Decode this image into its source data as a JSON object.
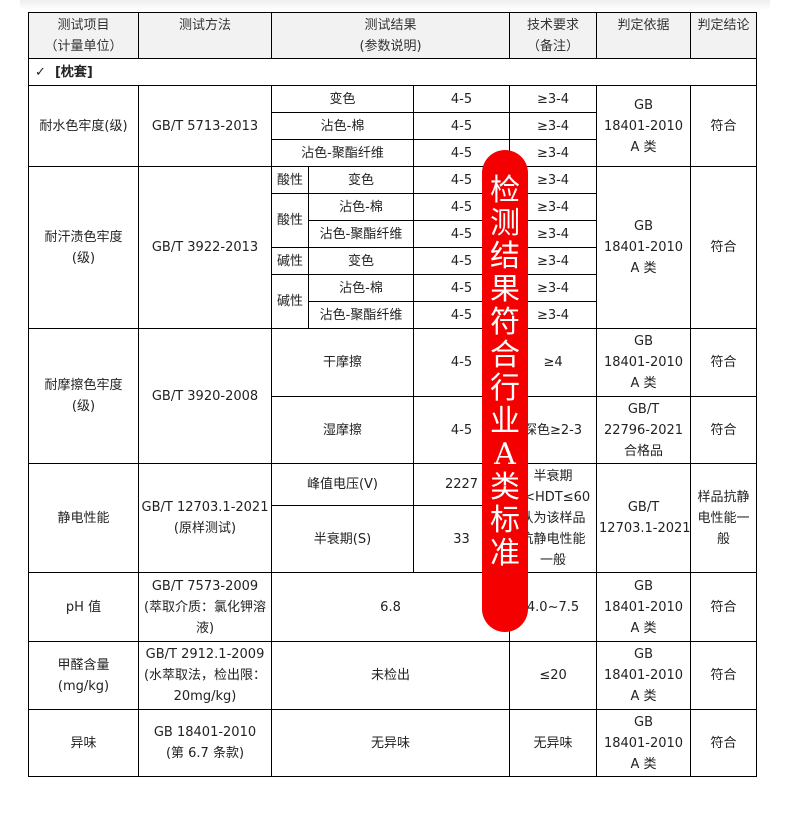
{
  "header": {
    "item": [
      "测试项目",
      "（计量单位）"
    ],
    "method": "测试方法",
    "result": [
      "测试结果",
      "(参数说明)"
    ],
    "req": [
      "技术要求",
      "（备注）"
    ],
    "basis": "判定依据",
    "conclusion": "判定结论"
  },
  "section": {
    "check": "✓",
    "label": "[枕套]"
  },
  "water": {
    "item": "耐水色牢度(级)",
    "method": "GB/T 5713-2013",
    "rows": [
      {
        "param": "变色",
        "value": "4-5",
        "req": "≥3-4"
      },
      {
        "param": "沾色-棉",
        "value": "4-5",
        "req": "≥3-4"
      },
      {
        "param": "沾色-聚酯纤维",
        "value": "4-5",
        "req": "≥3-4"
      }
    ],
    "basis": [
      "GB",
      "18401-2010",
      "A 类"
    ],
    "conclusion": "符合"
  },
  "sweat": {
    "item": [
      "耐汗渍色牢度",
      "(级)"
    ],
    "method": "GB/T 3922-2013",
    "acid": "酸性",
    "alkali": "碱性",
    "rows": [
      {
        "param": "变色",
        "value": "4-5",
        "req": "≥3-4"
      },
      {
        "param": "沾色-棉",
        "value": "4-5",
        "req": "≥3-4"
      },
      {
        "param": "沾色-聚酯纤维",
        "value": "4-5",
        "req": "≥3-4"
      },
      {
        "param": "变色",
        "value": "4-5",
        "req": "≥3-4"
      },
      {
        "param": "沾色-棉",
        "value": "4-5",
        "req": "≥3-4"
      },
      {
        "param": "沾色-聚酯纤维",
        "value": "4-5",
        "req": "≥3-4"
      }
    ],
    "basis": [
      "GB",
      "18401-2010",
      "A 类"
    ],
    "conclusion": "符合"
  },
  "rub": {
    "item": [
      "耐摩擦色牢度",
      "(级)"
    ],
    "method": "GB/T 3920-2008",
    "dry": {
      "param": "干摩擦",
      "value": "4-5",
      "req": "≥4",
      "basis": [
        "GB",
        "18401-2010",
        "A 类"
      ],
      "conclusion": "符合"
    },
    "wet": {
      "param": "湿摩擦",
      "value": "4-5",
      "req": "深色≥2-3",
      "basis": [
        "GB/T",
        "22796-2021",
        "合格品"
      ],
      "conclusion": "符合"
    }
  },
  "static": {
    "item": "静电性能",
    "method": [
      "GB/T 12703.1-2021",
      "(原样测试)"
    ],
    "peak": {
      "param": "峰值电压(V)",
      "value": "2227"
    },
    "half": {
      "param": "半衰期(S)",
      "value": "33"
    },
    "req": [
      "半衰期",
      "0<HDT≤60",
      "认为该样品",
      "抗静电性能",
      "一般"
    ],
    "basis": [
      "GB/T",
      "12703.1-2021"
    ],
    "conclusion": [
      "样品抗静",
      "电性能一",
      "般"
    ]
  },
  "ph": {
    "item": "pH 值",
    "method": [
      "GB/T 7573-2009",
      "(萃取介质：氯化钾溶",
      "液)"
    ],
    "value": "6.8",
    "req": "4.0~7.5",
    "basis": [
      "GB",
      "18401-2010",
      "A 类"
    ],
    "conclusion": "符合"
  },
  "formal": {
    "item": [
      "甲醛含量",
      "(mg/kg)"
    ],
    "method": [
      "GB/T 2912.1-2009",
      "(水萃取法，检出限：",
      "20mg/kg)"
    ],
    "value": "未检出",
    "req": "≤20",
    "basis": [
      "GB",
      "18401-2010",
      "A 类"
    ],
    "conclusion": "符合"
  },
  "odor": {
    "item": "异味",
    "method": [
      "GB 18401-2010",
      "(第 6.7 条款)"
    ],
    "value": "无异味",
    "req": "无异味",
    "basis": [
      "GB",
      "18401-2010",
      "A 类"
    ],
    "conclusion": "符合"
  },
  "stamp": {
    "chars": [
      "检",
      "测",
      "结",
      "果",
      "符",
      "合",
      "行",
      "业",
      "A",
      "类",
      "标",
      "准"
    ],
    "color": "#f40000"
  }
}
